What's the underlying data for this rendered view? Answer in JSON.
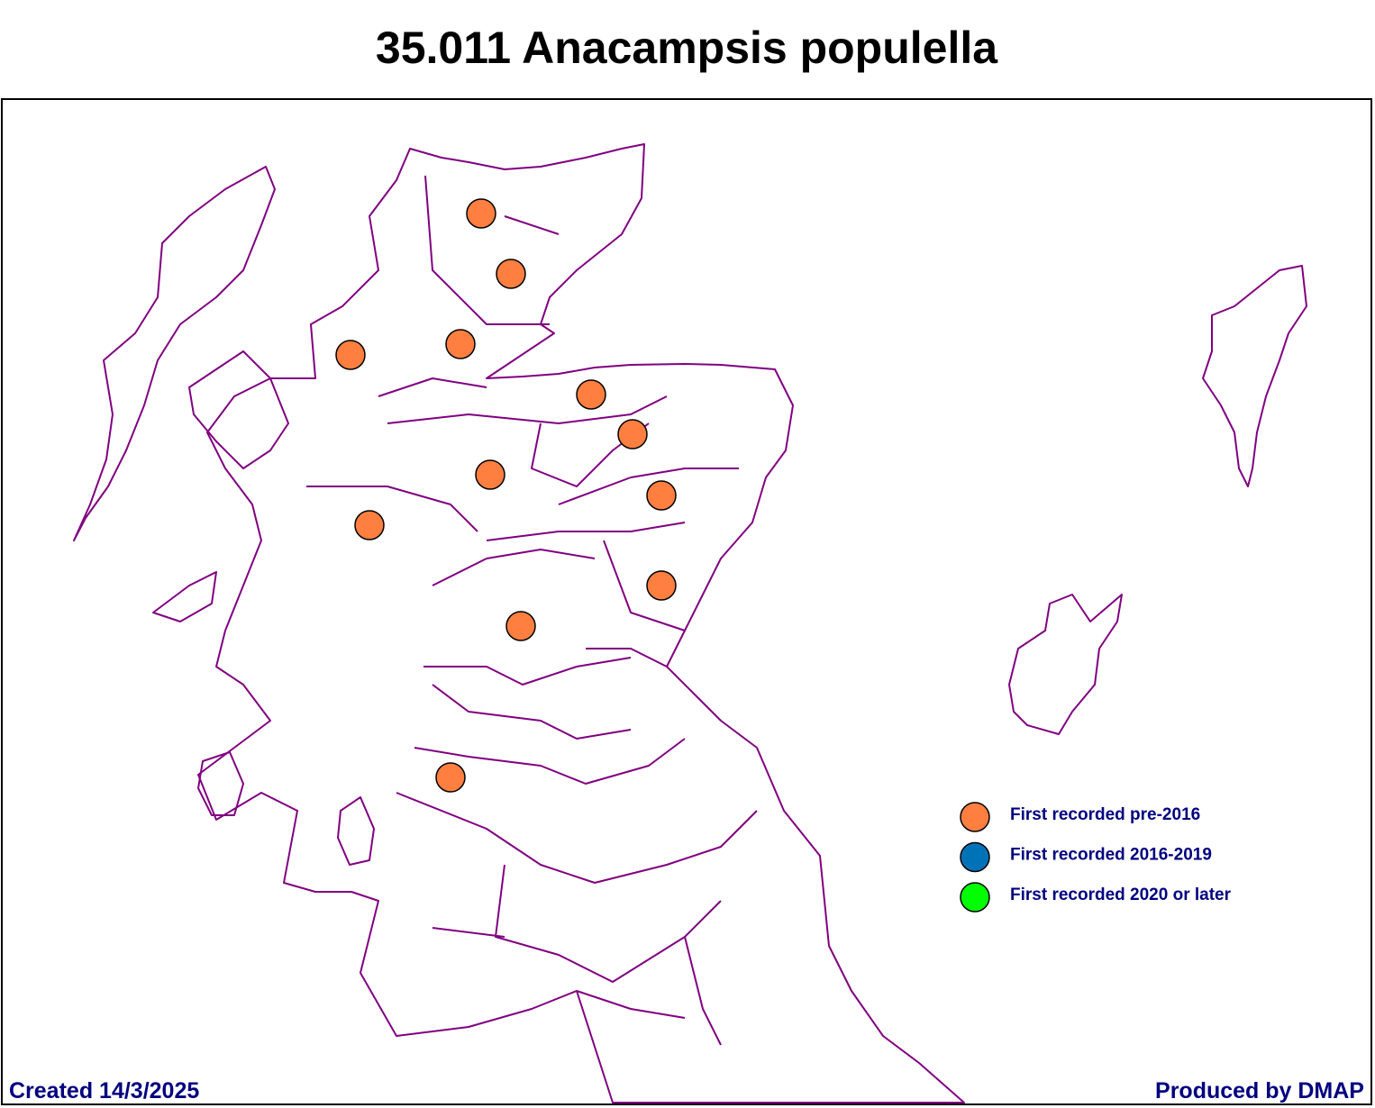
{
  "header": {
    "title": "35.011 Anacampsis populella"
  },
  "legend": [
    {
      "name": "First recorded pre-2016",
      "color": "#ff7f40"
    },
    {
      "name": "First recorded 2016-2019",
      "color": "#0073b8"
    },
    {
      "name": "First recorded 2020 or later",
      "color": "#00ff00"
    }
  ],
  "footer": {
    "left": "Created 14/3/2025",
    "right": "Produced by DMAP"
  }
}
